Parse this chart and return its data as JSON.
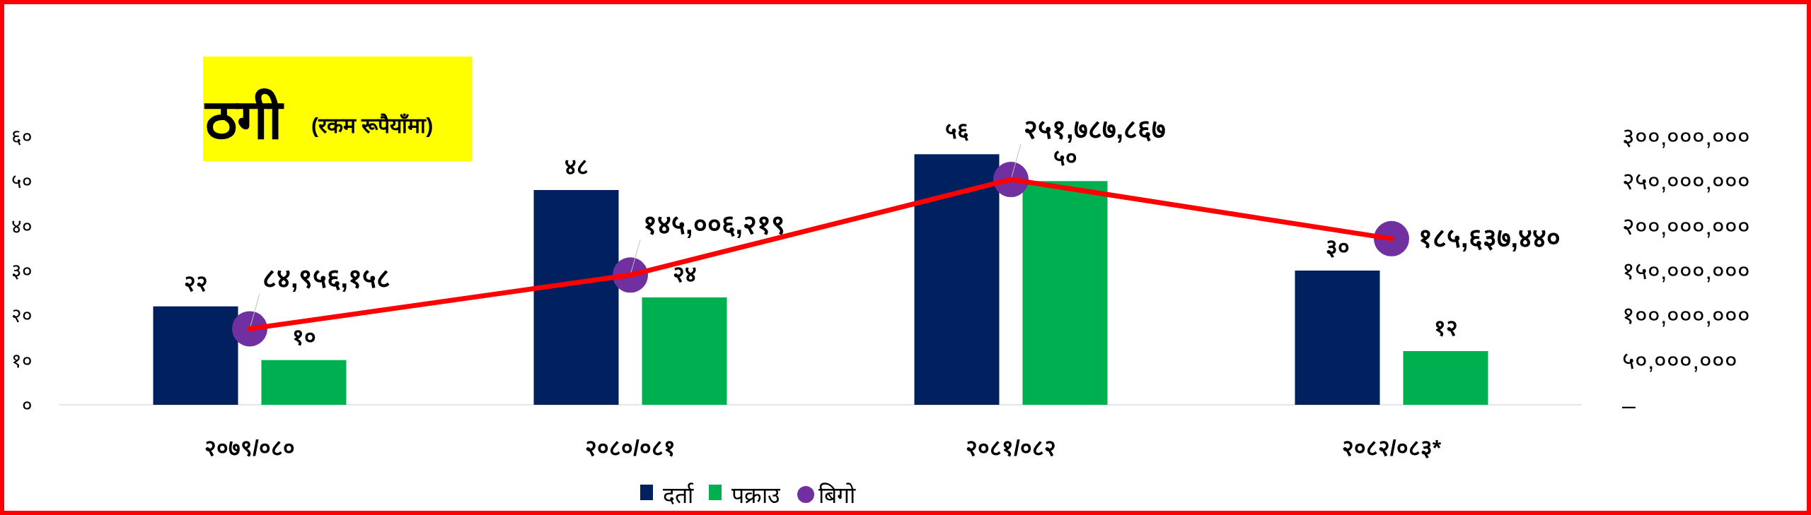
{
  "chart_data": {
    "type": "bar",
    "title": "ठगी",
    "subtitle": "(रकम रूपैयाँमा)",
    "categories": [
      "२०७९/०८०",
      "२०८०/०८१",
      "२०८१/०८२",
      "२०८२/०८३*"
    ],
    "series": [
      {
        "name": "दर्ता",
        "color": "#002060",
        "values": [
          22,
          48,
          56,
          30
        ],
        "value_labels": [
          "२२",
          "४८",
          "५६",
          "३०"
        ]
      },
      {
        "name": "पक्राउ",
        "color": "#00b050",
        "values": [
          10,
          24,
          50,
          12
        ],
        "value_labels": [
          "१०",
          "२४",
          "५०",
          "१२"
        ]
      },
      {
        "name": "बिगो",
        "type": "scatter",
        "axis": "y2",
        "color": "#7030a0",
        "marker": "circle",
        "values": [
          84956158,
          145006219,
          251787867,
          185637440
        ],
        "value_labels": [
          "८४,९५६,१५८",
          "१४५,००६,२१९",
          "२५१,७८७,८६७",
          "१८५,६३७,४४०"
        ]
      },
      {
        "type": "line",
        "axis": "y2",
        "color": "#ff0000",
        "values": [
          84956158,
          145006219,
          251787867,
          185637440
        ]
      }
    ],
    "ylim": [
      0,
      60
    ],
    "yticks": [
      {
        "value": 0,
        "label": "०"
      },
      {
        "value": 10,
        "label": "१०"
      },
      {
        "value": 20,
        "label": "२०"
      },
      {
        "value": 30,
        "label": "३०"
      },
      {
        "value": 40,
        "label": "४०"
      },
      {
        "value": 50,
        "label": "५०"
      },
      {
        "value": 60,
        "label": "६०"
      }
    ],
    "y2lim": [
      0,
      300000000
    ],
    "y2ticks": [
      {
        "value": 0,
        "label": "–"
      },
      {
        "value": 50000000,
        "label": "५०,०००,०००"
      },
      {
        "value": 100000000,
        "label": "१००,०००,०००"
      },
      {
        "value": 150000000,
        "label": "१५०,०००,०००"
      },
      {
        "value": 200000000,
        "label": "२००,०००,०००"
      },
      {
        "value": 250000000,
        "label": "२५०,०००,०००"
      },
      {
        "value": 300000000,
        "label": "३००,०००,०००"
      }
    ],
    "legend": "bottom",
    "grid": false
  }
}
